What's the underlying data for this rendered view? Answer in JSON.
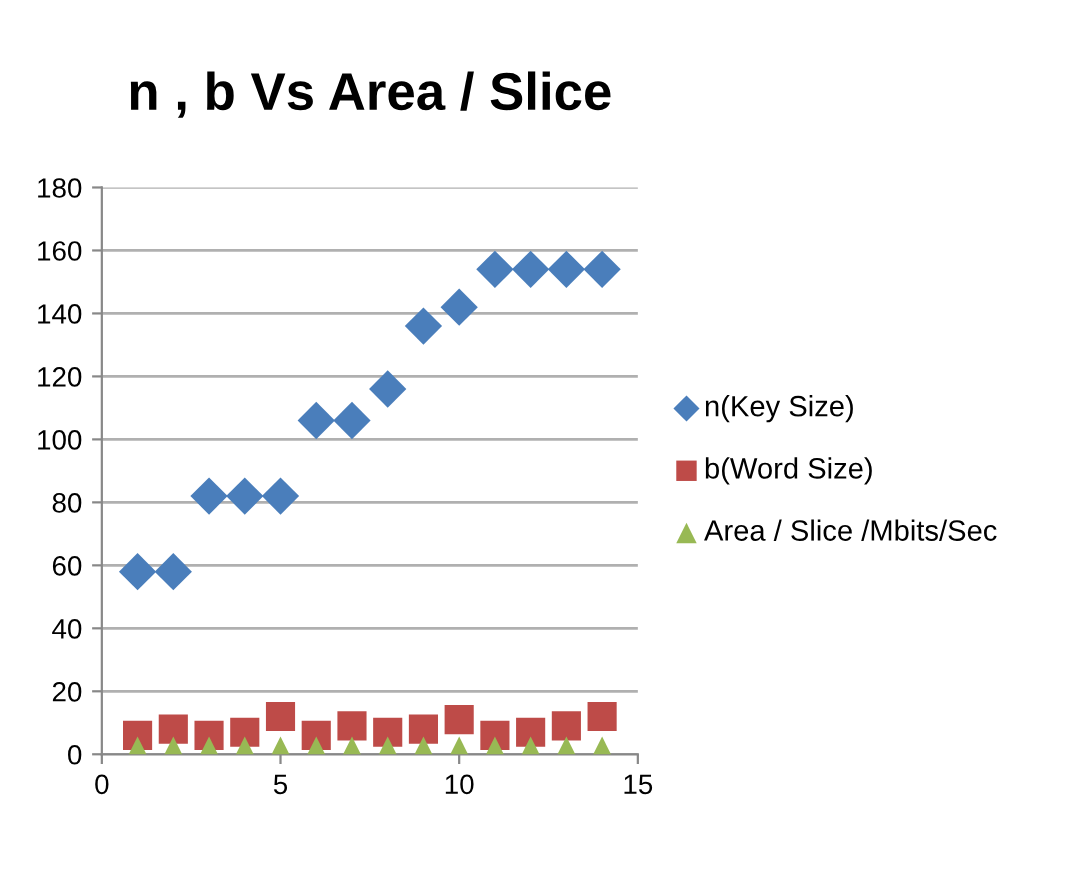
{
  "chart_data": {
    "type": "scatter",
    "title": "n , b Vs Area / Slice",
    "x": [
      1,
      2,
      3,
      4,
      5,
      6,
      7,
      8,
      9,
      10,
      11,
      12,
      13,
      14
    ],
    "series": [
      {
        "name": "n(Key Size)",
        "color": "#4a7ebb",
        "marker": "diamond",
        "values": [
          58,
          58,
          82,
          82,
          82,
          106,
          106,
          116,
          136,
          142,
          154,
          154,
          154,
          154
        ]
      },
      {
        "name": "b(Word Size)",
        "color": "#be4b48",
        "marker": "square",
        "values": [
          6,
          8,
          6,
          7,
          12,
          6,
          9,
          7,
          8,
          11,
          6,
          7,
          9,
          12
        ]
      },
      {
        "name": "Area / Slice /Mbits/Sec",
        "color": "#98b954",
        "marker": "triangle",
        "values": [
          1,
          1,
          1,
          1,
          1,
          1,
          1,
          1,
          1,
          1,
          1,
          1,
          1,
          1
        ]
      }
    ],
    "xlim": [
      0,
      15
    ],
    "xticks": [
      0,
      5,
      10,
      15
    ],
    "ylim": [
      0,
      180
    ],
    "yticks": [
      0,
      20,
      40,
      60,
      80,
      100,
      120,
      140,
      160,
      180
    ],
    "grid": "y",
    "legend": "right"
  }
}
